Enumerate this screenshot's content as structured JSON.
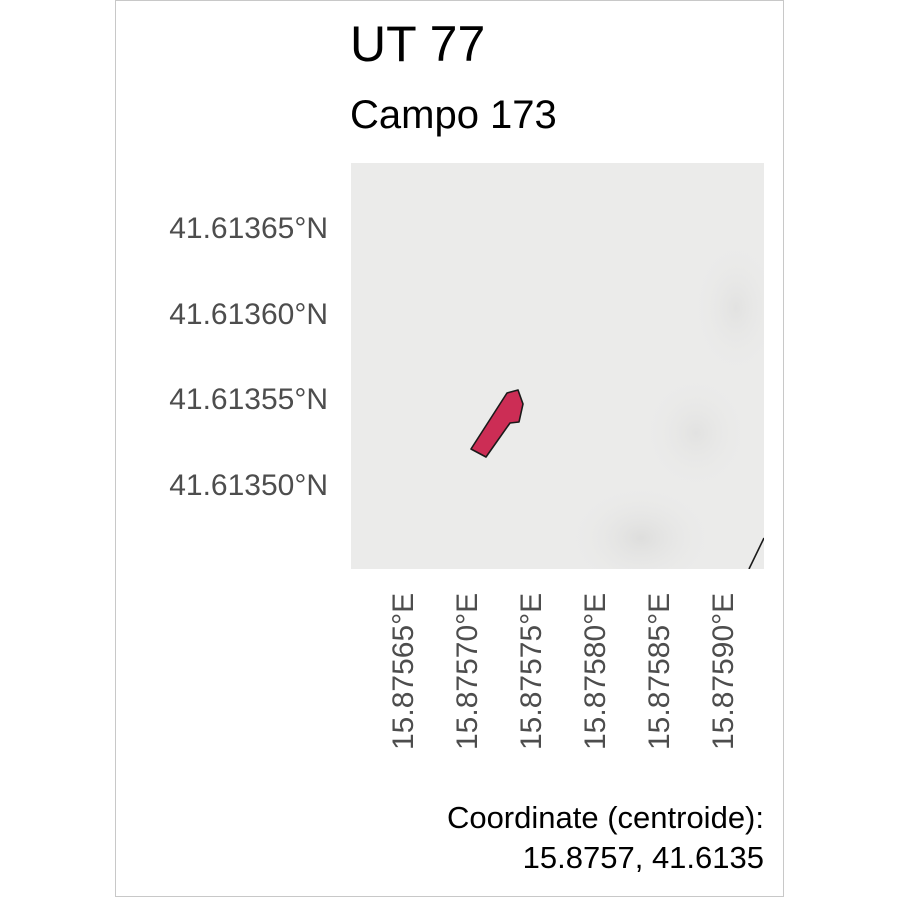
{
  "map": {
    "title": "UT 77",
    "subtitle": "Campo 173",
    "y_axis_ticks": [
      "41.61365°N",
      "41.61360°N",
      "41.61355°N",
      "41.61350°N"
    ],
    "x_axis_ticks": [
      "15.87565°E",
      "15.87570°E",
      "15.87575°E",
      "15.87580°E",
      "15.87585°E",
      "15.87590°E"
    ],
    "caption_line1": "Coordinate (centroide):",
    "caption_line2": "15.8757, 41.6135",
    "parcel_fill": "#cc2d55",
    "parcel_stroke": "#1a1a1a",
    "panel_background": "#ebebea"
  }
}
